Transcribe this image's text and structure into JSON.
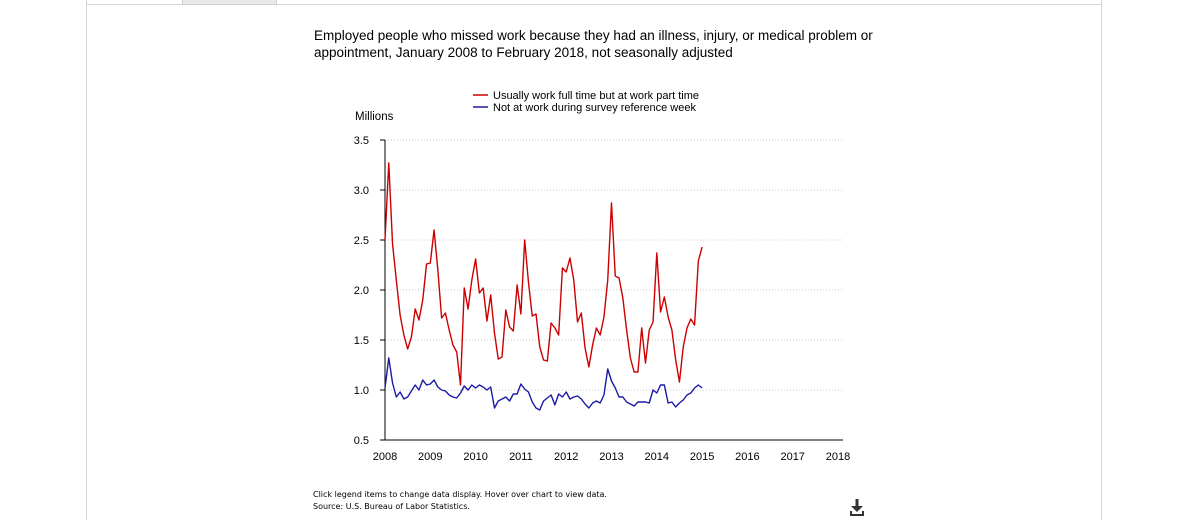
{
  "chart_data": {
    "type": "line",
    "title": "Employed people who missed work because they had an illness, injury, or medical problem or appointment, January 2008 to February 2018, not seasonally adjusted",
    "ylabel": "Millions",
    "xlabel": "",
    "ylim": [
      0.5,
      3.5
    ],
    "xlim": [
      2008,
      2018
    ],
    "x_ticks": [
      "2008",
      "2009",
      "2010",
      "2011",
      "2012",
      "2013",
      "2014",
      "2015",
      "2016",
      "2017",
      "2018"
    ],
    "y_ticks": [
      "0.5",
      "1.0",
      "1.5",
      "2.0",
      "2.5",
      "3.0",
      "3.5"
    ],
    "grid": "horizontal dotted",
    "legend_position": "top-center",
    "x_unit": "year (monthly data, Jan 2008 onward)",
    "series": [
      {
        "name": "Usually work full time but at work part time",
        "color": "#cc0000",
        "values": [
          2.5,
          3.27,
          2.46,
          2.1,
          1.75,
          1.55,
          1.41,
          1.53,
          1.81,
          1.7,
          1.9,
          2.26,
          2.27,
          2.6,
          2.2,
          1.72,
          1.77,
          1.6,
          1.45,
          1.38,
          1.05,
          2.02,
          1.81,
          2.1,
          2.31,
          1.97,
          2.02,
          1.69,
          1.95,
          1.57,
          1.31,
          1.33,
          1.8,
          1.63,
          1.59,
          2.05,
          1.76,
          2.5,
          2.08,
          1.74,
          1.76,
          1.43,
          1.3,
          1.29,
          1.67,
          1.62,
          1.55,
          2.22,
          2.18,
          2.32,
          2.1,
          1.68,
          1.77,
          1.42,
          1.23,
          1.45,
          1.62,
          1.55,
          1.73,
          2.1,
          2.87,
          2.14,
          2.12,
          1.92,
          1.6,
          1.32,
          1.18,
          1.18,
          1.62,
          1.27,
          1.6,
          1.68,
          2.37,
          1.78,
          1.93,
          1.73,
          1.6,
          1.3,
          1.08,
          1.43,
          1.62,
          1.71,
          1.65,
          2.29,
          2.43
        ]
      },
      {
        "name": "Not at work during survey reference week",
        "color": "#1a1aa6",
        "values": [
          1.02,
          1.32,
          1.07,
          0.93,
          0.98,
          0.91,
          0.93,
          0.99,
          1.05,
          1.0,
          1.1,
          1.05,
          1.06,
          1.1,
          1.03,
          1.0,
          0.99,
          0.95,
          0.93,
          0.92,
          0.97,
          1.04,
          1.0,
          1.05,
          1.02,
          1.05,
          1.03,
          1.0,
          1.03,
          0.82,
          0.89,
          0.91,
          0.93,
          0.89,
          0.96,
          0.96,
          1.06,
          1.01,
          0.98,
          0.88,
          0.82,
          0.8,
          0.89,
          0.92,
          0.95,
          0.85,
          0.96,
          0.93,
          0.98,
          0.91,
          0.93,
          0.94,
          0.91,
          0.86,
          0.82,
          0.87,
          0.89,
          0.87,
          0.95,
          1.21,
          1.09,
          1.02,
          0.93,
          0.93,
          0.88,
          0.86,
          0.84,
          0.88,
          0.88,
          0.88,
          0.87,
          1.0,
          0.97,
          1.05,
          1.05,
          0.87,
          0.88,
          0.83,
          0.87,
          0.9,
          0.95,
          0.97,
          1.02,
          1.05,
          1.02
        ]
      }
    ]
  },
  "footer": {
    "note": "Click legend items to change data display. Hover over chart to view data.",
    "source": "Source: U.S. Bureau of Labor Statistics."
  },
  "icons": {
    "download": "download-icon"
  }
}
